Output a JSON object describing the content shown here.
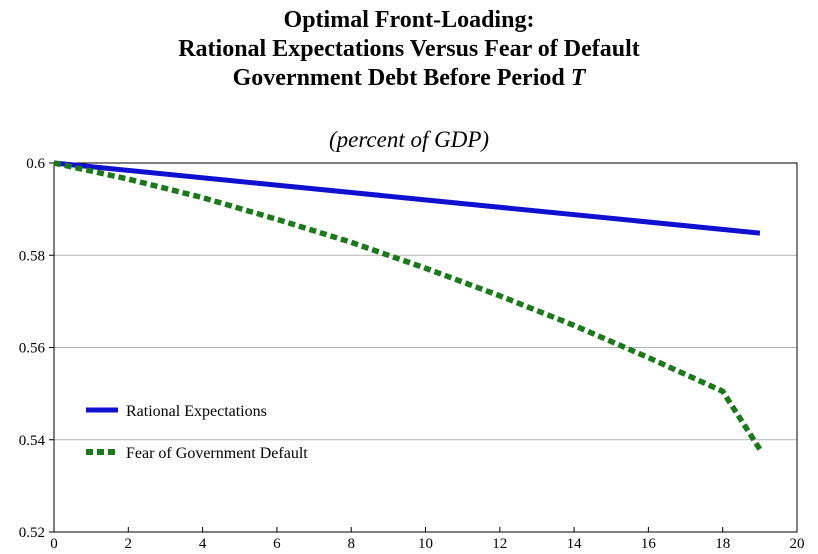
{
  "chart_data": {
    "type": "line",
    "title_lines": [
      "Optimal Front-Loading:",
      "Rational Expectations Versus Fear of Default",
      "Government Debt Before Period "
    ],
    "title_italic": "T",
    "subtitle": "(percent of GDP)",
    "xlabel": "",
    "ylabel": "",
    "xlim": [
      0,
      20
    ],
    "ylim": [
      0.52,
      0.6
    ],
    "x_ticks": [
      "0",
      "2",
      "4",
      "6",
      "8",
      "10",
      "12",
      "14",
      "16",
      "18",
      "20"
    ],
    "y_ticks": [
      "0.52",
      "0.54",
      "0.56",
      "0.58",
      "0.6"
    ],
    "grid": "horizontal",
    "legend_position": "lower-left",
    "series": [
      {
        "name": "Rational Expectations",
        "color": "#1010d0",
        "style": "solid",
        "x": [
          0,
          19
        ],
        "y": [
          0.6,
          0.5848
        ]
      },
      {
        "name": "Fear of Government Default",
        "color": "#1a7a1a",
        "style": "dashed",
        "x": [
          0,
          2,
          4,
          6,
          8,
          10,
          12,
          14,
          16,
          18,
          19
        ],
        "y": [
          0.6,
          0.5965,
          0.5925,
          0.5878,
          0.5828,
          0.5772,
          0.5712,
          0.5648,
          0.5578,
          0.5505,
          0.5379
        ]
      }
    ]
  }
}
